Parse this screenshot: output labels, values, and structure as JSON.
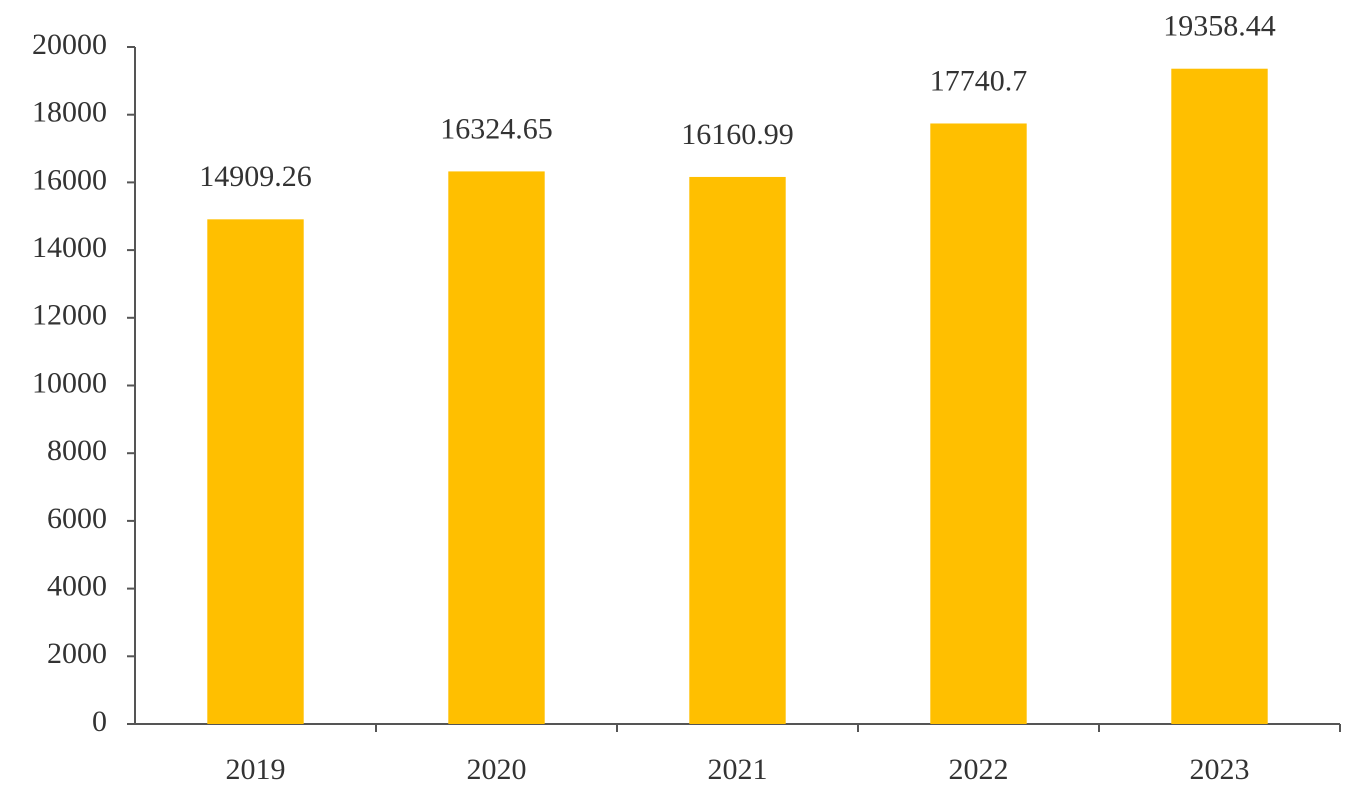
{
  "chart_data": {
    "type": "bar",
    "categories": [
      "2019",
      "2020",
      "2021",
      "2022",
      "2023"
    ],
    "values": [
      14909.26,
      16324.65,
      16160.99,
      17740.7,
      19358.44
    ],
    "color": "#ffbf00",
    "ylim": [
      0,
      20000
    ],
    "yticks": [
      0,
      2000,
      4000,
      6000,
      8000,
      10000,
      12000,
      14000,
      16000,
      18000,
      20000
    ],
    "grid": false
  }
}
